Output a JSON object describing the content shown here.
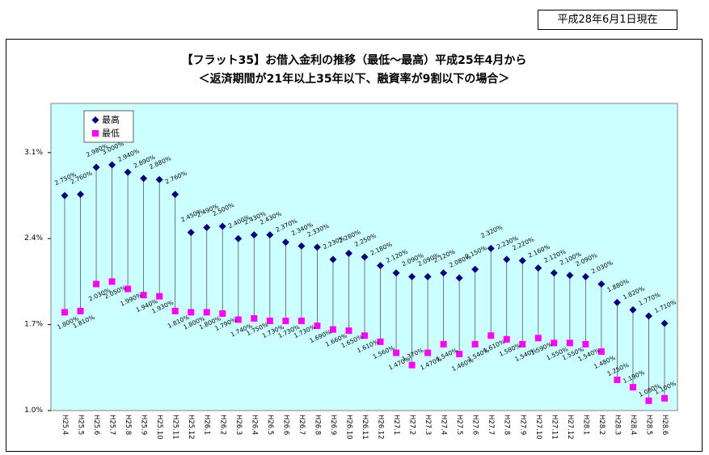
{
  "header": {
    "as_of": "平成28年6月1日現在"
  },
  "chart_data": {
    "type": "line",
    "line_style": "markers-only",
    "high_low_lines": true,
    "title": "【フラット35】お借入金利の推移（最低～最高）平成25年4月から",
    "subtitle": "＜返済期間が21年以上35年以下、融資率が9割以下の場合＞",
    "categories": [
      "H25.4",
      "H25.5",
      "H25.6",
      "H25.7",
      "H25.8",
      "H25.9",
      "H25.10",
      "H25.11",
      "H25.12",
      "H26.1",
      "H26.2",
      "H26.3",
      "H26.4",
      "H26.5",
      "H26.6",
      "H26.7",
      "H26.8",
      "H26.9",
      "H26.10",
      "H26.11",
      "H26.12",
      "H27.1",
      "H27.2",
      "H27.3",
      "H27.4",
      "H27.5",
      "H27.6",
      "H27.7",
      "H27.8",
      "H27.9",
      "H27.10",
      "H27.11",
      "H27.12",
      "H28.1",
      "H28.2",
      "H28.3",
      "H28.4",
      "H28.5",
      "H28.6"
    ],
    "series": [
      {
        "name": "最高",
        "marker": "diamond",
        "color": "#000080",
        "values": [
          2.75,
          2.76,
          2.98,
          3.0,
          2.94,
          2.89,
          2.88,
          2.76,
          2.45,
          2.49,
          2.5,
          2.4,
          2.43,
          2.43,
          2.37,
          2.34,
          2.33,
          2.23,
          2.28,
          2.25,
          2.18,
          2.12,
          2.09,
          2.09,
          2.12,
          2.08,
          2.15,
          2.32,
          2.23,
          2.22,
          2.16,
          2.12,
          2.1,
          2.09,
          2.03,
          1.88,
          1.82,
          1.77,
          1.71
        ]
      },
      {
        "name": "最低",
        "marker": "square",
        "color": "#ff00ff",
        "values": [
          1.8,
          1.81,
          2.03,
          2.05,
          1.99,
          1.94,
          1.93,
          1.81,
          1.8,
          1.8,
          1.79,
          1.74,
          1.75,
          1.73,
          1.73,
          1.73,
          1.69,
          1.66,
          1.65,
          1.61,
          1.56,
          1.47,
          1.37,
          1.47,
          1.54,
          1.46,
          1.54,
          1.61,
          1.58,
          1.54,
          1.59,
          1.55,
          1.55,
          1.54,
          1.48,
          1.25,
          1.19,
          1.08,
          1.1
        ]
      }
    ],
    "ylim": [
      1.0,
      3.5
    ],
    "y_ticks": [
      1.0,
      1.7,
      2.4,
      3.1
    ],
    "y_tick_labels": [
      "1.0%",
      "1.7%",
      "2.4%",
      "3.1%"
    ],
    "value_unit": "%",
    "grid": false,
    "legend": "top-left",
    "plot_background": "#ccffff"
  }
}
